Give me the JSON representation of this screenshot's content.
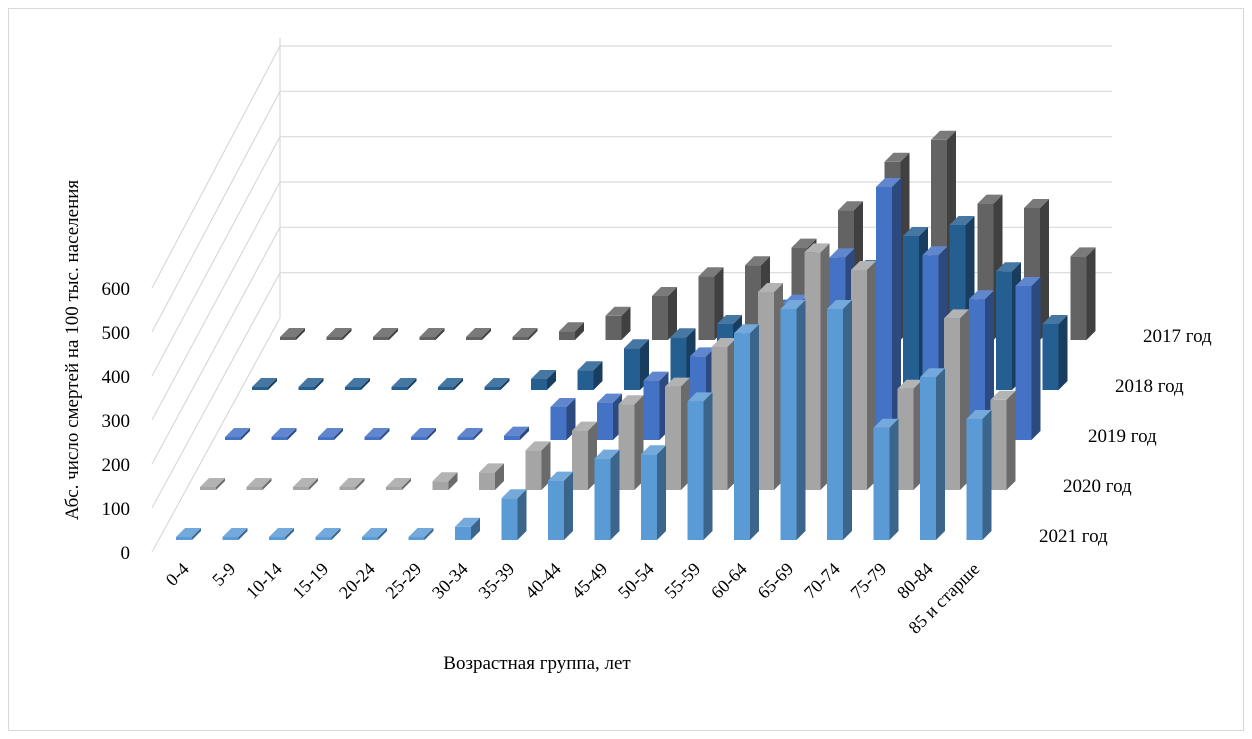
{
  "chart_data": {
    "type": "bar",
    "style": "3d-column",
    "title": "",
    "xlabel": "Возрастная группа, лет",
    "ylabel": "Абс. число смертей на 100 тыс. населения",
    "ylim": [
      0,
      600
    ],
    "yticks": [
      "0",
      "100",
      "200",
      "300",
      "400",
      "500",
      "600"
    ],
    "grid": true,
    "categories": [
      "0-4",
      "5-9",
      "10-14",
      "15-19",
      "20-24",
      "25-29",
      "30-34",
      "35-39",
      "40-44",
      "45-49",
      "50-54",
      "55-59",
      "60-64",
      "65-69",
      "70-74",
      "75-79",
      "80-84",
      "85 и старше"
    ],
    "series": [
      {
        "name": "2021 год",
        "color": "#5b9bd5",
        "values": [
          0,
          0,
          0,
          0,
          0,
          5,
          30,
          95,
          135,
          185,
          195,
          315,
          470,
          525,
          525,
          255,
          370,
          275
        ]
      },
      {
        "name": "2020 год",
        "color": "#a5a5a5",
        "values": [
          0,
          0,
          0,
          0,
          0,
          20,
          40,
          90,
          135,
          195,
          235,
          325,
          450,
          540,
          500,
          230,
          390,
          205
        ]
      },
      {
        "name": "2019 год",
        "color": "#4472c4",
        "values": [
          0,
          0,
          0,
          0,
          0,
          5,
          10,
          75,
          85,
          135,
          190,
          220,
          310,
          415,
          575,
          420,
          320,
          350
        ]
      },
      {
        "name": "2018 год",
        "color": "#255e91",
        "values": [
          0,
          0,
          0,
          0,
          0,
          0,
          25,
          45,
          95,
          120,
          150,
          185,
          210,
          275,
          350,
          375,
          270,
          150
        ]
      },
      {
        "name": "2017 год",
        "color": "#636363",
        "values": [
          0,
          0,
          0,
          0,
          0,
          0,
          20,
          55,
          100,
          145,
          170,
          210,
          295,
          405,
          455,
          310,
          300,
          190
        ]
      }
    ]
  }
}
